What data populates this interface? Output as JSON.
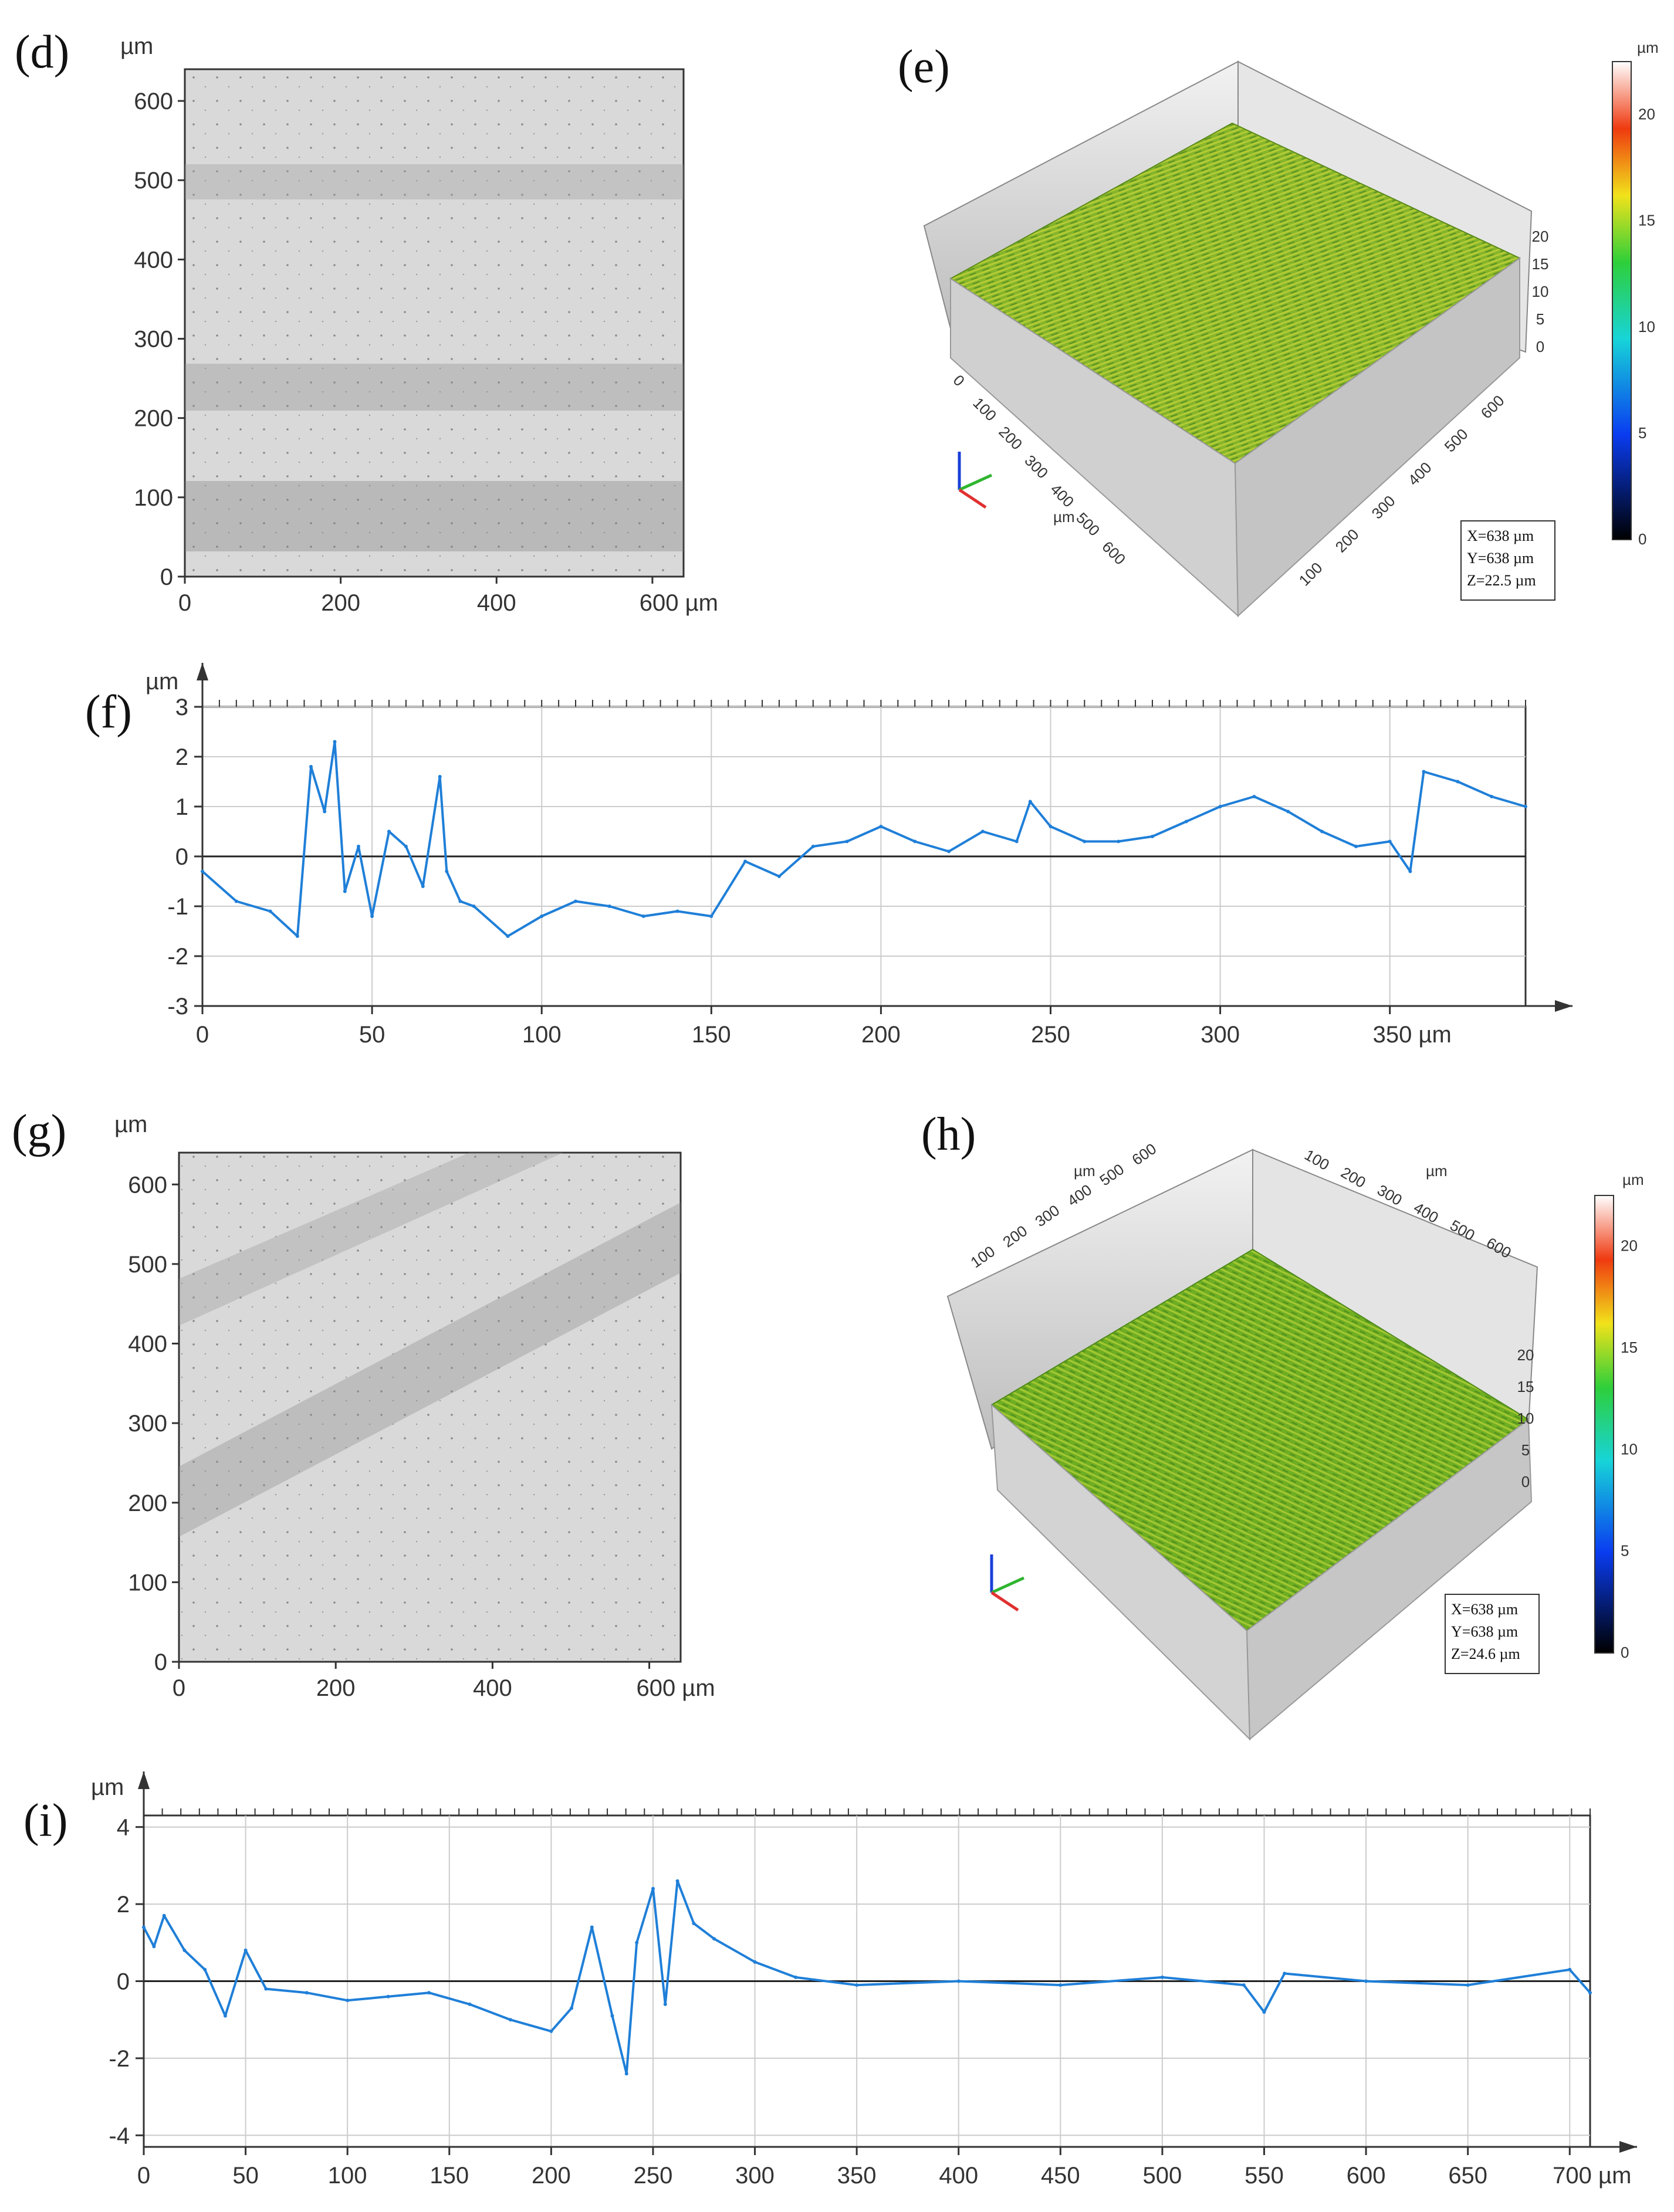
{
  "panels": {
    "d": {
      "label": "(d)",
      "unit": "µm",
      "x_ticks": [
        "0",
        "200",
        "400",
        "600 µm"
      ],
      "y_ticks": [
        "0",
        "100",
        "200",
        "300",
        "400",
        "500",
        "600"
      ]
    },
    "e": {
      "label": "(e)",
      "legend_unit": "µm",
      "legend_ticks": [
        "0",
        "5",
        "10",
        "15",
        "20"
      ],
      "info": [
        "X=638 µm",
        "Y=638 µm",
        "Z=22.5 µm"
      ],
      "axis_ticks_left": [
        "0",
        "100",
        "200",
        "300",
        "400",
        "500",
        "600"
      ],
      "axis_ticks_right": [
        "100",
        "200",
        "300",
        "400",
        "500",
        "600"
      ],
      "z_ticks": [
        "0",
        "5",
        "10",
        "15",
        "20"
      ],
      "axis_unit": "µm"
    },
    "g": {
      "label": "(g)",
      "unit": "µm",
      "x_ticks": [
        "0",
        "200",
        "400",
        "600 µm"
      ],
      "y_ticks": [
        "0",
        "100",
        "200",
        "300",
        "400",
        "500",
        "600"
      ]
    },
    "h": {
      "label": "(h)",
      "legend_unit": "µm",
      "legend_ticks": [
        "0",
        "5",
        "10",
        "15",
        "20"
      ],
      "info": [
        "X=638 µm",
        "Y=638 µm",
        "Z=24.6 µm"
      ],
      "axis_ticks_left": [
        "100",
        "200",
        "300",
        "400",
        "500",
        "600"
      ],
      "axis_ticks_right": [
        "100",
        "200",
        "300",
        "400",
        "500",
        "600"
      ],
      "z_ticks": [
        "0",
        "5",
        "10",
        "15",
        "20"
      ],
      "axis_unit": "µm"
    }
  },
  "chart_data": [
    {
      "id": "f",
      "label": "(f)",
      "type": "line",
      "ylabel_unit": "µm",
      "x_unit": "µm",
      "xlim": [
        0,
        390
      ],
      "ylim": [
        -3,
        3
      ],
      "x_ticks": [
        0,
        50,
        100,
        150,
        200,
        250,
        300,
        350
      ],
      "x_tick_labels": [
        "0",
        "50",
        "100",
        "150",
        "200",
        "250",
        "300",
        "350 µm"
      ],
      "y_ticks": [
        -3,
        -2,
        -1,
        0,
        1,
        2,
        3
      ],
      "y_tick_labels": [
        "-3",
        "-2",
        "-1",
        "0",
        "1",
        "2",
        "3"
      ],
      "grid": true,
      "color": "#1f7fd8",
      "x": [
        0,
        10,
        20,
        28,
        32,
        36,
        39,
        42,
        46,
        50,
        55,
        60,
        65,
        70,
        72,
        76,
        80,
        90,
        100,
        110,
        120,
        130,
        140,
        150,
        160,
        170,
        180,
        190,
        200,
        210,
        220,
        230,
        240,
        244,
        250,
        260,
        270,
        280,
        290,
        300,
        310,
        320,
        330,
        340,
        350,
        356,
        360,
        370,
        380,
        390
      ],
      "y": [
        -0.3,
        -0.9,
        -1.1,
        -1.6,
        1.8,
        0.9,
        2.3,
        -0.7,
        0.2,
        -1.2,
        0.5,
        0.2,
        -0.6,
        1.6,
        -0.3,
        -0.9,
        -1.0,
        -1.6,
        -1.2,
        -0.9,
        -1.0,
        -1.2,
        -1.1,
        -1.2,
        -0.1,
        -0.4,
        0.2,
        0.3,
        0.6,
        0.3,
        0.1,
        0.5,
        0.3,
        1.1,
        0.6,
        0.3,
        0.3,
        0.4,
        0.7,
        1.0,
        1.2,
        0.9,
        0.5,
        0.2,
        0.3,
        -0.3,
        1.7,
        1.5,
        1.2,
        1.0
      ]
    },
    {
      "id": "i",
      "label": "(i)",
      "type": "line",
      "ylabel_unit": "µm",
      "x_unit": "µm",
      "xlim": [
        0,
        710
      ],
      "ylim": [
        -4.3,
        4.3
      ],
      "x_ticks": [
        0,
        50,
        100,
        150,
        200,
        250,
        300,
        350,
        400,
        450,
        500,
        550,
        600,
        650,
        700
      ],
      "x_tick_labels": [
        "0",
        "50",
        "100",
        "150",
        "200",
        "250",
        "300",
        "350",
        "400",
        "450",
        "500",
        "550",
        "600",
        "650",
        "700 µm"
      ],
      "y_ticks": [
        -4,
        -2,
        0,
        2,
        4
      ],
      "y_tick_labels": [
        "-4",
        "-2",
        "0",
        "2",
        "4"
      ],
      "grid": true,
      "color": "#1f7fd8",
      "x": [
        0,
        5,
        10,
        20,
        30,
        40,
        50,
        60,
        80,
        100,
        120,
        140,
        160,
        180,
        200,
        210,
        220,
        230,
        237,
        242,
        250,
        256,
        262,
        270,
        280,
        300,
        320,
        350,
        400,
        450,
        500,
        540,
        550,
        560,
        600,
        650,
        700,
        710
      ],
      "y": [
        1.4,
        0.9,
        1.7,
        0.8,
        0.3,
        -0.9,
        0.8,
        -0.2,
        -0.3,
        -0.5,
        -0.4,
        -0.3,
        -0.6,
        -1.0,
        -1.3,
        -0.7,
        1.4,
        -0.9,
        -2.4,
        1.0,
        2.4,
        -0.6,
        2.6,
        1.5,
        1.1,
        0.5,
        0.1,
        -0.1,
        0.0,
        -0.1,
        0.1,
        -0.1,
        -0.8,
        0.2,
        0.0,
        -0.1,
        0.3,
        -0.3
      ]
    }
  ]
}
